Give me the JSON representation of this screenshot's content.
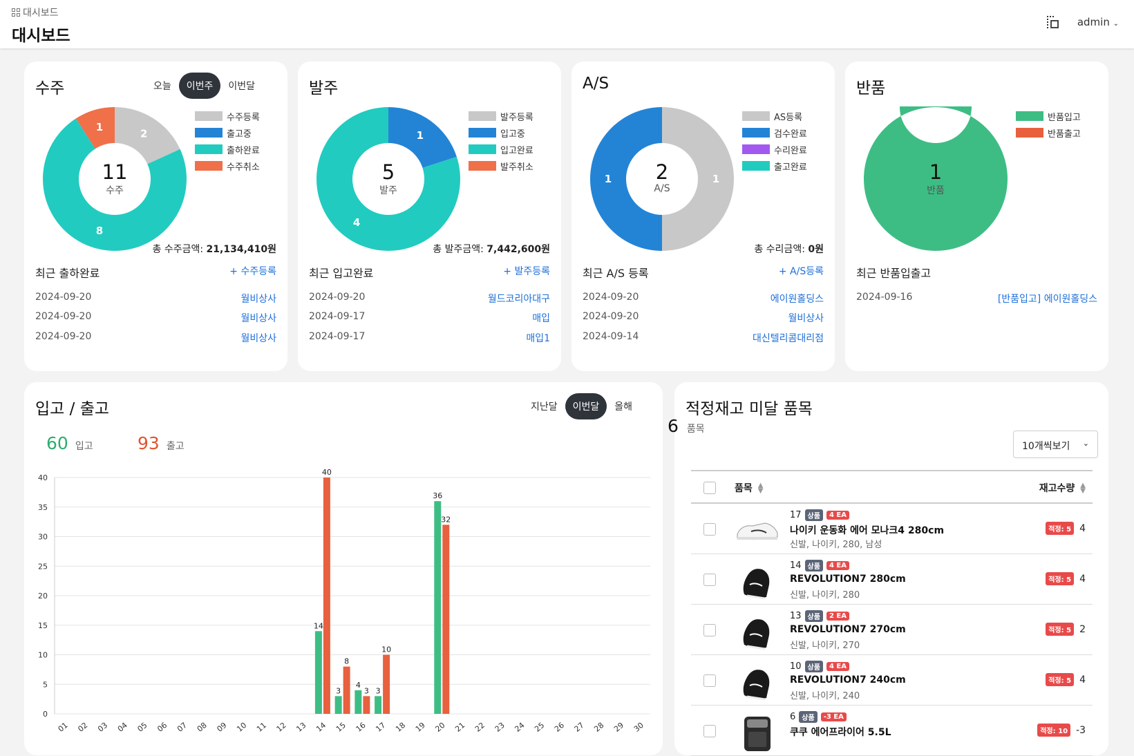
{
  "header": {
    "breadcrumb": "대시보드",
    "title": "대시보드",
    "user": "admin"
  },
  "cards": [
    {
      "title": "수주",
      "tabs": [
        "오늘",
        "이번주",
        "이번달"
      ],
      "active_tab": "이번주",
      "center_value": "11",
      "center_label": "수주",
      "legend": [
        {
          "label": "수주등록",
          "color": "#c8c8c8"
        },
        {
          "label": "출고중",
          "color": "#2384d6"
        },
        {
          "label": "출하완료",
          "color": "#22cbc0"
        },
        {
          "label": "수주취소",
          "color": "#ef7049"
        }
      ],
      "slices": [
        {
          "label": "수주등록",
          "value": 2,
          "color": "#c8c8c8"
        },
        {
          "label": "출고중",
          "value": 0,
          "color": "#2384d6"
        },
        {
          "label": "출하완료",
          "value": 8,
          "color": "#22cbc0"
        },
        {
          "label": "수주취소",
          "value": 1,
          "color": "#ef7049"
        }
      ],
      "total_label": "총 수주금액:",
      "total_value": "21,134,410원",
      "recent_title": "최근 출하완료",
      "add_link": "+ 수주등록",
      "recent": [
        {
          "date": "2024-09-20",
          "name": "월비상사"
        },
        {
          "date": "2024-09-20",
          "name": "월비상사"
        },
        {
          "date": "2024-09-20",
          "name": "월비상사"
        }
      ]
    },
    {
      "title": "발주",
      "tabs": [],
      "active_tab": "",
      "center_value": "5",
      "center_label": "발주",
      "legend": [
        {
          "label": "발주등록",
          "color": "#c8c8c8"
        },
        {
          "label": "입고중",
          "color": "#2384d6"
        },
        {
          "label": "입고완료",
          "color": "#22cbc0"
        },
        {
          "label": "발주취소",
          "color": "#ef7049"
        }
      ],
      "slices": [
        {
          "label": "발주등록",
          "value": 0,
          "color": "#c8c8c8"
        },
        {
          "label": "입고중",
          "value": 1,
          "color": "#2384d6"
        },
        {
          "label": "입고완료",
          "value": 4,
          "color": "#22cbc0"
        },
        {
          "label": "발주취소",
          "value": 0,
          "color": "#ef7049"
        }
      ],
      "total_label": "총 발주금액:",
      "total_value": "7,442,600원",
      "recent_title": "최근 입고완료",
      "add_link": "+ 발주등록",
      "recent": [
        {
          "date": "2024-09-20",
          "name": "월드코리아대구"
        },
        {
          "date": "2024-09-17",
          "name": "매입"
        },
        {
          "date": "2024-09-17",
          "name": "매입1"
        }
      ]
    },
    {
      "title": "A/S",
      "tabs": [],
      "active_tab": "",
      "center_value": "2",
      "center_label": "A/S",
      "legend": [
        {
          "label": "AS등록",
          "color": "#c8c8c8"
        },
        {
          "label": "검수완료",
          "color": "#2384d6"
        },
        {
          "label": "수리완료",
          "color": "#a259f0"
        },
        {
          "label": "출고완료",
          "color": "#22cbc0"
        }
      ],
      "slices": [
        {
          "label": "AS등록",
          "value": 1,
          "color": "#c8c8c8"
        },
        {
          "label": "검수완료",
          "value": 1,
          "color": "#2384d6"
        },
        {
          "label": "수리완료",
          "value": 0,
          "color": "#a259f0"
        },
        {
          "label": "출고완료",
          "value": 0,
          "color": "#22cbc0"
        }
      ],
      "total_label": "총 수리금액:",
      "total_value": "0원",
      "recent_title": "최근 A/S 등록",
      "add_link": "+ A/S등록",
      "recent": [
        {
          "date": "2024-09-20",
          "name": "에이원홀딩스"
        },
        {
          "date": "2024-09-20",
          "name": "월비상사"
        },
        {
          "date": "2024-09-14",
          "name": "대신텔리콤대리점"
        }
      ]
    },
    {
      "title": "반품",
      "tabs": [],
      "active_tab": "",
      "center_value": "1",
      "center_label": "반품",
      "legend": [
        {
          "label": "반품입고",
          "color": "#3dbd84"
        },
        {
          "label": "반품출고",
          "color": "#e8603e"
        }
      ],
      "slices": [
        {
          "label": "반품입고",
          "value": 1,
          "color": "#3dbd84"
        },
        {
          "label": "반품출고",
          "value": 0,
          "color": "#e8603e"
        }
      ],
      "total_label": "",
      "total_value": "",
      "recent_title": "최근 반품입출고",
      "add_link": "",
      "recent": [
        {
          "date": "2024-09-16",
          "name": "[반품입고] 에이원홀딩스"
        }
      ]
    }
  ],
  "io": {
    "title": "입고 / 출고",
    "tabs": [
      "지난달",
      "이번달",
      "올해"
    ],
    "active_tab": "이번달",
    "in_value": "60",
    "in_label": "입고",
    "out_value": "93",
    "out_label": "출고"
  },
  "chart_data": {
    "type": "bar",
    "categories": [
      "01",
      "02",
      "03",
      "04",
      "05",
      "06",
      "07",
      "08",
      "09",
      "10",
      "11",
      "12",
      "13",
      "14",
      "15",
      "16",
      "17",
      "18",
      "19",
      "20",
      "21",
      "22",
      "23",
      "24",
      "25",
      "26",
      "27",
      "28",
      "29",
      "30"
    ],
    "series": [
      {
        "name": "입고",
        "color": "#3dbd84",
        "values": [
          0,
          0,
          0,
          0,
          0,
          0,
          0,
          0,
          0,
          0,
          0,
          0,
          0,
          14,
          3,
          4,
          3,
          0,
          0,
          36,
          0,
          0,
          0,
          0,
          0,
          0,
          0,
          0,
          0,
          0
        ]
      },
      {
        "name": "출고",
        "color": "#e8603e",
        "values": [
          0,
          0,
          0,
          0,
          0,
          0,
          0,
          0,
          0,
          0,
          0,
          0,
          0,
          40,
          8,
          3,
          10,
          0,
          0,
          32,
          0,
          0,
          0,
          0,
          0,
          0,
          0,
          0,
          0,
          0
        ]
      }
    ],
    "ylim": [
      0,
      40
    ],
    "yticks": [
      0,
      5,
      10,
      15,
      20,
      25,
      30,
      35,
      40
    ],
    "grid": true
  },
  "inventory": {
    "title": "적정재고 미달 품목",
    "count": "6",
    "count_label": "품목",
    "page_size": "10개씩보기",
    "col_item": "품목",
    "col_qty": "재고수량",
    "rows": [
      {
        "code": "17",
        "tag": "상품",
        "ea": "4 EA",
        "name": "나이키 운동화 에어 모나크4 280cm",
        "sub": "신발, 나이키, 280, 남성",
        "proper": "적정: 5",
        "qty": "4",
        "thumb": "white-shoe"
      },
      {
        "code": "14",
        "tag": "상품",
        "ea": "4 EA",
        "name": "REVOLUTION7 280cm",
        "sub": "신발, 나이키, 280",
        "proper": "적정: 5",
        "qty": "4",
        "thumb": "black-shoe"
      },
      {
        "code": "13",
        "tag": "상품",
        "ea": "2 EA",
        "name": "REVOLUTION7 270cm",
        "sub": "신발, 나이키, 270",
        "proper": "적정: 5",
        "qty": "2",
        "thumb": "black-shoe"
      },
      {
        "code": "10",
        "tag": "상품",
        "ea": "4 EA",
        "name": "REVOLUTION7 240cm",
        "sub": "신발, 나이키, 240",
        "proper": "적정: 5",
        "qty": "4",
        "thumb": "black-shoe"
      },
      {
        "code": "6",
        "tag": "상품",
        "ea": "-3 EA",
        "name": "쿠쿠 에어프라이어 5.5L",
        "sub": "",
        "proper": "적정: 10",
        "qty": "-3",
        "thumb": "air-fryer"
      }
    ]
  }
}
